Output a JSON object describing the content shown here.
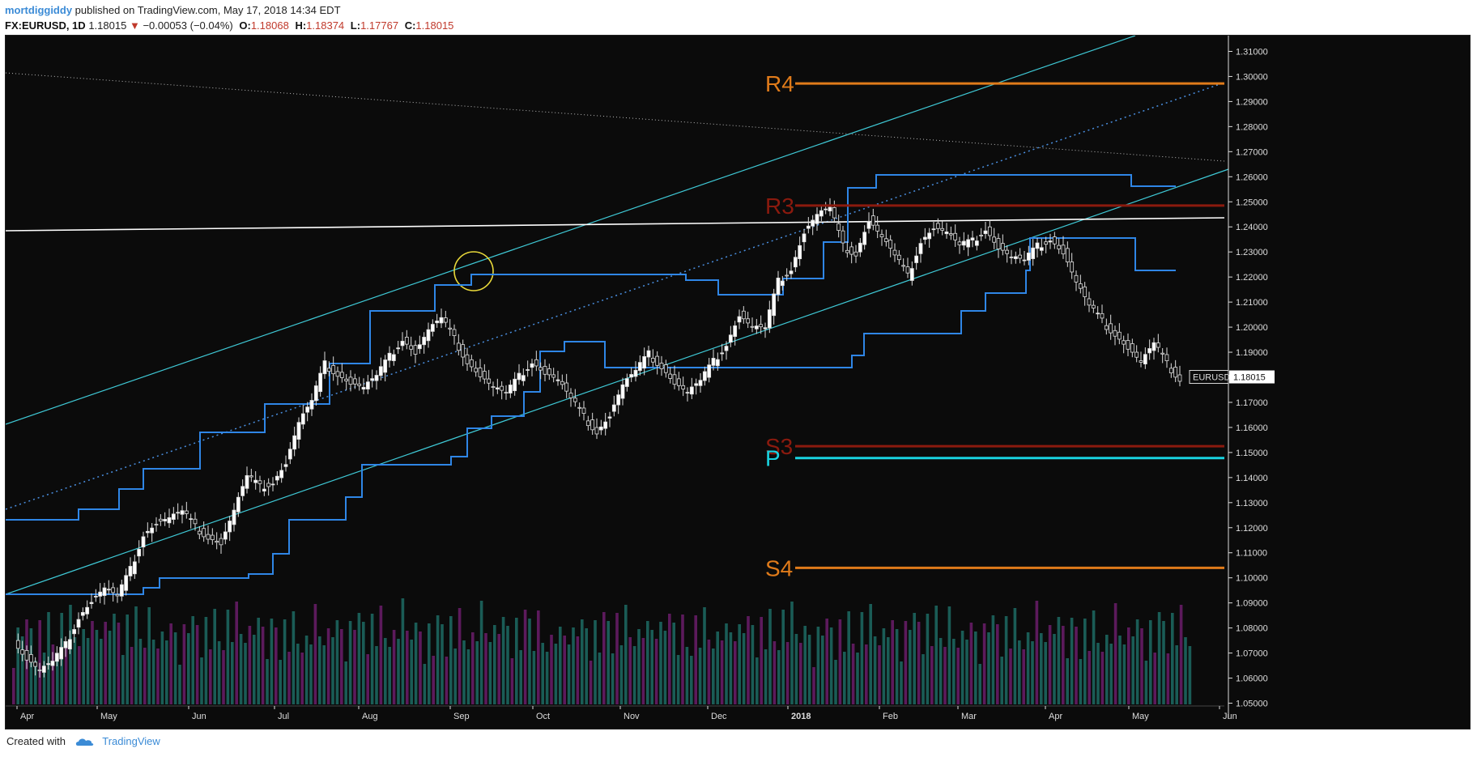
{
  "header": {
    "author": "mortdiggiddy",
    "published_text": " published on TradingView.com, May 17, 2018 14:34 EDT",
    "symbol": "FX:EURUSD, 1D",
    "last": "1.18015",
    "change": "−0.00053 (−0.04%)",
    "open_label": "O:",
    "open": "1.18068",
    "high_label": "H:",
    "high": "1.18374",
    "low_label": "L:",
    "low": "1.17767",
    "close_label": "C:",
    "close": "1.18015"
  },
  "footer": {
    "created_with": "Created with",
    "brand": "TradingView"
  },
  "chart_data": {
    "type": "candlestick",
    "symbol_tag": "EURUSD",
    "last_price_tag": "1.18015",
    "price_axis": {
      "min": 1.045,
      "max": 1.315,
      "ticks": [
        "1.31000",
        "1.30000",
        "1.29000",
        "1.28000",
        "1.27000",
        "1.26000",
        "1.25000",
        "1.24000",
        "1.23000",
        "1.22000",
        "1.21000",
        "1.20000",
        "1.19000",
        "1.18000",
        "1.17000",
        "1.16000",
        "1.15000",
        "1.14000",
        "1.13000",
        "1.12000",
        "1.11000",
        "1.10000",
        "1.09000",
        "1.08000",
        "1.07000",
        "1.06000",
        "1.05000"
      ]
    },
    "time_axis": {
      "months": [
        "Apr",
        "May",
        "Jun",
        "Jul",
        "Aug",
        "Sep",
        "Oct",
        "Nov",
        "Dec",
        "2018",
        "Feb",
        "Mar",
        "Apr",
        "May",
        "Jun"
      ]
    },
    "pivot_levels": [
      {
        "label": "R4",
        "value": 1.2972,
        "color": "#e07b1a"
      },
      {
        "label": "R3",
        "value": 1.2485,
        "color": "#8b1a0e"
      },
      {
        "label": "S3",
        "value": 1.1525,
        "color": "#8b1a0e"
      },
      {
        "label": "P",
        "value": 1.1478,
        "color": "#19d3e0"
      },
      {
        "label": "S4",
        "value": 1.104,
        "color": "#e07b1a"
      }
    ],
    "candles_close_path": [
      [
        0,
        1.075
      ],
      [
        6,
        1.068
      ],
      [
        12,
        1.063
      ],
      [
        18,
        1.066
      ],
      [
        24,
        1.073
      ],
      [
        30,
        1.085
      ],
      [
        36,
        1.091
      ],
      [
        42,
        1.096
      ],
      [
        48,
        1.092
      ],
      [
        54,
        1.103
      ],
      [
        60,
        1.118
      ],
      [
        66,
        1.122
      ],
      [
        72,
        1.124
      ],
      [
        78,
        1.126
      ],
      [
        84,
        1.12
      ],
      [
        90,
        1.117
      ],
      [
        96,
        1.114
      ],
      [
        102,
        1.127
      ],
      [
        108,
        1.14
      ],
      [
        114,
        1.136
      ],
      [
        120,
        1.139
      ],
      [
        126,
        1.146
      ],
      [
        132,
        1.162
      ],
      [
        138,
        1.17
      ],
      [
        144,
        1.185
      ],
      [
        150,
        1.182
      ],
      [
        156,
        1.178
      ],
      [
        162,
        1.176
      ],
      [
        168,
        1.18
      ],
      [
        174,
        1.188
      ],
      [
        180,
        1.196
      ],
      [
        186,
        1.19
      ],
      [
        192,
        1.199
      ],
      [
        198,
        1.203
      ],
      [
        204,
        1.195
      ],
      [
        210,
        1.187
      ],
      [
        216,
        1.181
      ],
      [
        222,
        1.176
      ],
      [
        228,
        1.173
      ],
      [
        234,
        1.18
      ],
      [
        240,
        1.187
      ],
      [
        246,
        1.182
      ],
      [
        252,
        1.179
      ],
      [
        258,
        1.171
      ],
      [
        264,
        1.164
      ],
      [
        270,
        1.159
      ],
      [
        276,
        1.165
      ],
      [
        282,
        1.177
      ],
      [
        288,
        1.182
      ],
      [
        294,
        1.189
      ],
      [
        300,
        1.185
      ],
      [
        306,
        1.178
      ],
      [
        312,
        1.174
      ],
      [
        318,
        1.178
      ],
      [
        324,
        1.186
      ],
      [
        330,
        1.194
      ],
      [
        336,
        1.205
      ],
      [
        342,
        1.2
      ],
      [
        348,
        1.199
      ],
      [
        354,
        1.218
      ],
      [
        360,
        1.224
      ],
      [
        366,
        1.238
      ],
      [
        372,
        1.245
      ],
      [
        378,
        1.247
      ],
      [
        384,
        1.232
      ],
      [
        390,
        1.23
      ],
      [
        396,
        1.243
      ],
      [
        402,
        1.236
      ],
      [
        408,
        1.228
      ],
      [
        414,
        1.22
      ],
      [
        420,
        1.235
      ],
      [
        426,
        1.24
      ],
      [
        432,
        1.238
      ],
      [
        438,
        1.232
      ],
      [
        444,
        1.234
      ],
      [
        450,
        1.24
      ],
      [
        456,
        1.232
      ],
      [
        462,
        1.228
      ],
      [
        468,
        1.226
      ],
      [
        474,
        1.232
      ],
      [
        480,
        1.236
      ],
      [
        486,
        1.23
      ],
      [
        492,
        1.218
      ],
      [
        498,
        1.208
      ],
      [
        504,
        1.202
      ],
      [
        510,
        1.198
      ],
      [
        516,
        1.192
      ],
      [
        522,
        1.186
      ],
      [
        528,
        1.193
      ],
      [
        534,
        1.185
      ],
      [
        540,
        1.18
      ]
    ],
    "volume_scale_max": 1
  }
}
